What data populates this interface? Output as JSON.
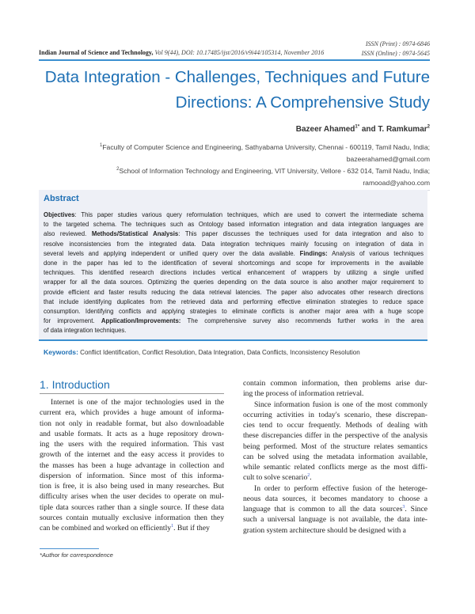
{
  "header": {
    "journal": "Indian Journal of Science and Technology,",
    "citation": "Vol 9(44), DOI: 10.17485/ijst/2016/v9i44/105314, November 2016",
    "issn_print": "ISSN (Print) : 0974-6846",
    "issn_online": "ISSN (Online) : 0974-5645",
    "accent_color": "#1d6fb4"
  },
  "title": [
    "Data Integration - Challenges, Techniques and Future",
    "Directions: A Comprehensive Study"
  ],
  "authors": {
    "a1": "Bazeer Ahamed",
    "a1_sup": "1*",
    "and": " and ",
    "a2": "T. Ramkumar",
    "a2_sup": "2"
  },
  "affiliations": [
    {
      "sup": "1",
      "line1": "Faculty of Computer Science and Engineering, Sathyabama University, Chennai - 600119, Tamil Nadu, India;",
      "email": "bazeerahamed@gmail.com"
    },
    {
      "sup": "2",
      "line1": "School of Information Technology and Engineering, VIT University, Vellore - 632 014, Tamil Nadu, India;",
      "email": "ramooad@yahoo.com"
    }
  ],
  "abstract": {
    "heading": "Abstract",
    "lines": [
      [
        {
          "b": "Objectives"
        },
        {
          "t": ": This paper studies various query reformulation techniques, which are used to convert the intermediate schema"
        }
      ],
      [
        {
          "t": "to the targeted schema. The techniques such as Ontology based information integration and data integration languages are"
        }
      ],
      [
        {
          "t": "also reviewed. "
        },
        {
          "b": "Methods/Statistical Analysis"
        },
        {
          "t": ": This paper discusses the techniques used for data integration and also to"
        }
      ],
      [
        {
          "t": "resolve inconsistencies from the integrated data. Data integration techniques mainly focusing on integration of data in"
        }
      ],
      [
        {
          "t": "several levels and applying independent or unified query over the data available. "
        },
        {
          "b": "Findings:"
        },
        {
          "t": " Analysis of various techniques"
        }
      ],
      [
        {
          "t": "done in the paper has led to the identification of several shortcomings and scope for improvements in the available"
        }
      ],
      [
        {
          "t": "techniques. This identified research directions includes vertical enhancement of wrappers by utilizing a single unified"
        }
      ],
      [
        {
          "t": "wrapper for all the data sources. Optimizing the queries depending on the data source is also another major requirement to"
        }
      ],
      [
        {
          "t": "provide efficient and faster results reducing the data retrieval latencies. The paper also advocates other research directions"
        }
      ],
      [
        {
          "t": "that include identifying duplicates from the retrieved data and performing effective elimination strategies to reduce space"
        }
      ],
      [
        {
          "t": "consumption. Identifying conflicts and applying strategies to eliminate conflicts is another major area with a huge scope"
        }
      ],
      [
        {
          "t": "for improvement.   "
        },
        {
          "b": "Application/Improvements:"
        },
        {
          "t": " The comprehensive survey also recommends further works in the area"
        }
      ],
      [
        {
          "t": "of data integration techniques."
        }
      ]
    ]
  },
  "keywords": {
    "label": "Keywords:",
    "text": " Conflict Identification, Conflict Resolution, Data Integration, Data Conflicts, Inconsistency Resolution"
  },
  "section": {
    "heading": "1. Introduction"
  },
  "left_column": [
    {
      "indent": true,
      "lines": [
        "Internet is one of the major technologies used in the",
        "current era, which provides a huge amount of informa-",
        "tion not only in readable format, but also downloadable",
        "and usable formats. It acts as a huge repository drown-",
        "ing the users with the required information. This vast",
        "growth of the internet and the easy access it provides to",
        "the masses has been a huge advantage in collection and",
        "dispersion of information. Since most of this informa-",
        "tion is free, it is also being used in many researches. But",
        "difficulty arises when the user decides to operate on mul-",
        "tiple data sources rather than a single source. If these data",
        "sources contain mutually exclusive information then they",
        "can be combined and worked on efficiently|1|. But if they"
      ]
    }
  ],
  "right_column": [
    {
      "indent": false,
      "lines": [
        "contain common information, then problems arise dur-",
        "ing the process of information retrieval."
      ]
    },
    {
      "indent": true,
      "lines": [
        "Since information fusion is one of the most commonly",
        "occurring activities in today's scenario, these discrepan-",
        "cies tend to occur frequently. Methods of dealing with",
        "these discrepancies differ in the perspective of the analysis",
        "being performed. Most of the structure relates semantics",
        "can be solved using the metadata information available,",
        "while semantic related conflicts merge as the most diffi-",
        "cult to solve scenario|2|."
      ]
    },
    {
      "indent": true,
      "lines": [
        "In order to perform effective fusion of the heteroge-",
        "neous data sources, it becomes mandatory to choose a",
        "language that is common to all the data sources|3|. Since",
        "such a universal language is not available, the data inte-",
        "gration system architecture should be designed with a"
      ]
    }
  ],
  "footnote": "*Author for correspondence"
}
